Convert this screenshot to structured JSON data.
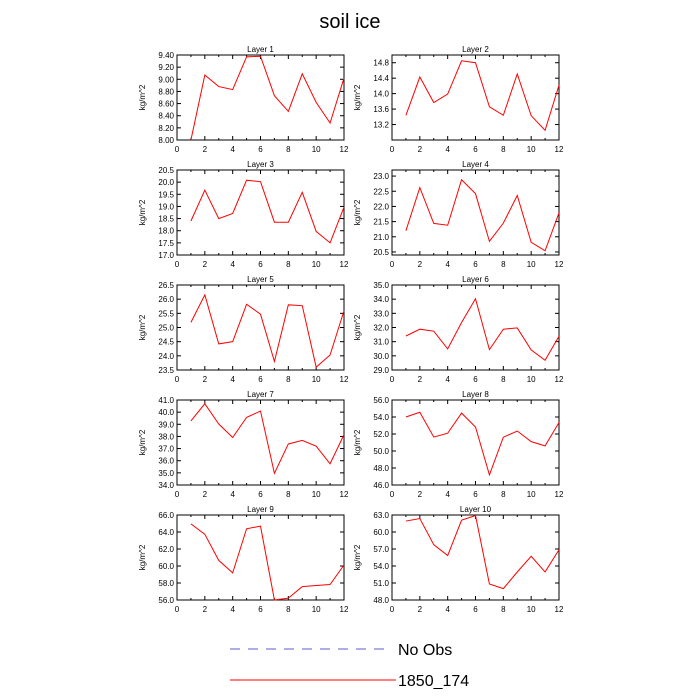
{
  "figure": {
    "title": "soil ice",
    "ylabel": "kg/m^2"
  },
  "legend": [
    {
      "label": "No Obs",
      "color": "#5b5bd6",
      "style": "dashed"
    },
    {
      "label": "1850_174",
      "color": "#ff0000",
      "style": "solid"
    }
  ],
  "chart_data": [
    {
      "type": "line",
      "title": "Layer 1",
      "ylabel": "kg/m^2",
      "xlim": [
        0,
        12
      ],
      "ylim": [
        8.0,
        9.4
      ],
      "xticks": [
        0,
        2,
        4,
        6,
        8,
        10,
        12
      ],
      "yticks": [
        "8.00",
        "8.20",
        "8.40",
        "8.60",
        "8.80",
        "9.00",
        "9.20",
        "9.40"
      ],
      "series": [
        {
          "color": "#ff0000",
          "x": [
            1,
            2,
            3,
            4,
            5,
            6,
            7,
            8,
            9,
            10,
            11,
            12
          ],
          "values": [
            8.0,
            9.07,
            8.88,
            8.83,
            9.37,
            9.38,
            8.73,
            8.47,
            9.09,
            8.62,
            8.28,
            9.02
          ]
        }
      ]
    },
    {
      "type": "line",
      "title": "Layer 2",
      "ylabel": "kg/m^2",
      "xlim": [
        0,
        12
      ],
      "ylim": [
        12.8,
        15.0
      ],
      "xticks": [
        0,
        2,
        4,
        6,
        8,
        10,
        12
      ],
      "yticks": [
        "13.2",
        "13.6",
        "14.0",
        "14.4",
        "14.8"
      ],
      "series": [
        {
          "color": "#ff0000",
          "x": [
            1,
            2,
            3,
            4,
            5,
            6,
            7,
            8,
            9,
            10,
            11,
            12
          ],
          "values": [
            13.44,
            14.43,
            13.77,
            13.99,
            14.85,
            14.8,
            13.66,
            13.44,
            14.51,
            13.43,
            13.05,
            14.22
          ]
        }
      ]
    },
    {
      "type": "line",
      "title": "Layer 3",
      "ylabel": "kg/m^2",
      "xlim": [
        0,
        12
      ],
      "ylim": [
        17.0,
        20.5
      ],
      "xticks": [
        0,
        2,
        4,
        6,
        8,
        10,
        12
      ],
      "yticks": [
        "17.0",
        "17.5",
        "18.0",
        "18.5",
        "19.0",
        "19.5",
        "20.0",
        "20.5"
      ],
      "series": [
        {
          "color": "#ff0000",
          "x": [
            1,
            2,
            3,
            4,
            5,
            6,
            7,
            8,
            9,
            10,
            11,
            12
          ],
          "values": [
            18.4,
            19.67,
            18.5,
            18.71,
            20.08,
            20.02,
            18.35,
            18.35,
            19.58,
            17.97,
            17.5,
            18.97
          ]
        }
      ]
    },
    {
      "type": "line",
      "title": "Layer 4",
      "ylabel": "kg/m^2",
      "xlim": [
        0,
        12
      ],
      "ylim": [
        20.4,
        23.2
      ],
      "xticks": [
        0,
        2,
        4,
        6,
        8,
        10,
        12
      ],
      "yticks": [
        "20.5",
        "21.0",
        "21.5",
        "22.0",
        "22.5",
        "23.0"
      ],
      "series": [
        {
          "color": "#ff0000",
          "x": [
            1,
            2,
            3,
            4,
            5,
            6,
            7,
            8,
            9,
            10,
            11,
            12
          ],
          "values": [
            21.2,
            22.62,
            21.44,
            21.38,
            22.88,
            22.42,
            20.85,
            21.45,
            22.36,
            20.82,
            20.54,
            21.79
          ]
        }
      ]
    },
    {
      "type": "line",
      "title": "Layer 5",
      "ylabel": "kg/m^2",
      "xlim": [
        0,
        12
      ],
      "ylim": [
        23.5,
        26.5
      ],
      "xticks": [
        0,
        2,
        4,
        6,
        8,
        10,
        12
      ],
      "yticks": [
        "23.5",
        "24.0",
        "24.5",
        "25.0",
        "25.5",
        "26.0",
        "26.5"
      ],
      "series": [
        {
          "color": "#ff0000",
          "x": [
            1,
            2,
            3,
            4,
            5,
            6,
            7,
            8,
            9,
            10,
            11,
            12
          ],
          "values": [
            25.18,
            26.15,
            24.42,
            24.5,
            25.82,
            25.47,
            23.8,
            25.8,
            25.77,
            23.6,
            24.03,
            25.59
          ]
        }
      ]
    },
    {
      "type": "line",
      "title": "Layer 6",
      "ylabel": "kg/m^2",
      "xlim": [
        0,
        12
      ],
      "ylim": [
        29.0,
        35.0
      ],
      "xticks": [
        0,
        2,
        4,
        6,
        8,
        10,
        12
      ],
      "yticks": [
        "29.0",
        "30.0",
        "31.0",
        "32.0",
        "33.0",
        "34.0",
        "35.0"
      ],
      "series": [
        {
          "color": "#ff0000",
          "x": [
            1,
            2,
            3,
            4,
            5,
            6,
            7,
            8,
            9,
            10,
            11,
            12
          ],
          "values": [
            31.4,
            31.88,
            31.74,
            30.49,
            32.35,
            34.03,
            30.44,
            31.88,
            31.97,
            30.42,
            29.69,
            31.38
          ]
        }
      ]
    },
    {
      "type": "line",
      "title": "Layer 7",
      "ylabel": "kg/m^2",
      "xlim": [
        0,
        12
      ],
      "ylim": [
        34.0,
        41.0
      ],
      "xticks": [
        0,
        2,
        4,
        6,
        8,
        10,
        12
      ],
      "yticks": [
        "34.0",
        "35.0",
        "36.0",
        "37.0",
        "38.0",
        "39.0",
        "40.0",
        "41.0"
      ],
      "series": [
        {
          "color": "#ff0000",
          "x": [
            1,
            2,
            3,
            4,
            5,
            6,
            7,
            8,
            9,
            10,
            11,
            12
          ],
          "values": [
            39.28,
            40.69,
            39.02,
            37.91,
            39.57,
            40.09,
            34.96,
            37.38,
            37.67,
            37.2,
            35.75,
            38.15
          ]
        }
      ]
    },
    {
      "type": "line",
      "title": "Layer 8",
      "ylabel": "kg/m^2",
      "xlim": [
        0,
        12
      ],
      "ylim": [
        46.0,
        56.0
      ],
      "xticks": [
        0,
        2,
        4,
        6,
        8,
        10,
        12
      ],
      "yticks": [
        "46.0",
        "48.0",
        "50.0",
        "52.0",
        "54.0",
        "56.0"
      ],
      "series": [
        {
          "color": "#ff0000",
          "x": [
            1,
            2,
            3,
            4,
            5,
            6,
            7,
            8,
            9,
            10,
            11,
            12
          ],
          "values": [
            54.0,
            54.56,
            51.64,
            52.09,
            54.46,
            52.82,
            47.19,
            51.62,
            52.35,
            51.1,
            50.6,
            53.35
          ]
        }
      ]
    },
    {
      "type": "line",
      "title": "Layer 9",
      "ylabel": "kg/m^2",
      "xlim": [
        0,
        12
      ],
      "ylim": [
        56.0,
        66.0
      ],
      "xticks": [
        0,
        2,
        4,
        6,
        8,
        10,
        12
      ],
      "yticks": [
        "56.0",
        "58.0",
        "60.0",
        "62.0",
        "64.0",
        "66.0"
      ],
      "series": [
        {
          "color": "#ff0000",
          "x": [
            1,
            2,
            3,
            4,
            5,
            6,
            7,
            8,
            9,
            10,
            11,
            12
          ],
          "values": [
            64.96,
            63.73,
            60.66,
            59.19,
            64.38,
            64.69,
            56.0,
            56.22,
            57.57,
            57.71,
            57.82,
            60.12
          ]
        }
      ]
    },
    {
      "type": "line",
      "title": "Layer 10",
      "ylabel": "kg/m^2",
      "xlim": [
        0,
        12
      ],
      "ylim": [
        48.0,
        63.0
      ],
      "xticks": [
        0,
        2,
        4,
        6,
        8,
        10,
        12
      ],
      "yticks": [
        "48.0",
        "51.0",
        "54.0",
        "57.0",
        "60.0",
        "63.0"
      ],
      "series": [
        {
          "color": "#ff0000",
          "x": [
            1,
            2,
            3,
            4,
            5,
            6,
            7,
            8,
            9,
            10,
            11,
            12
          ],
          "values": [
            61.93,
            62.38,
            57.76,
            55.85,
            62.09,
            62.91,
            50.82,
            50.01,
            52.94,
            55.71,
            52.95,
            56.87
          ]
        }
      ]
    }
  ]
}
